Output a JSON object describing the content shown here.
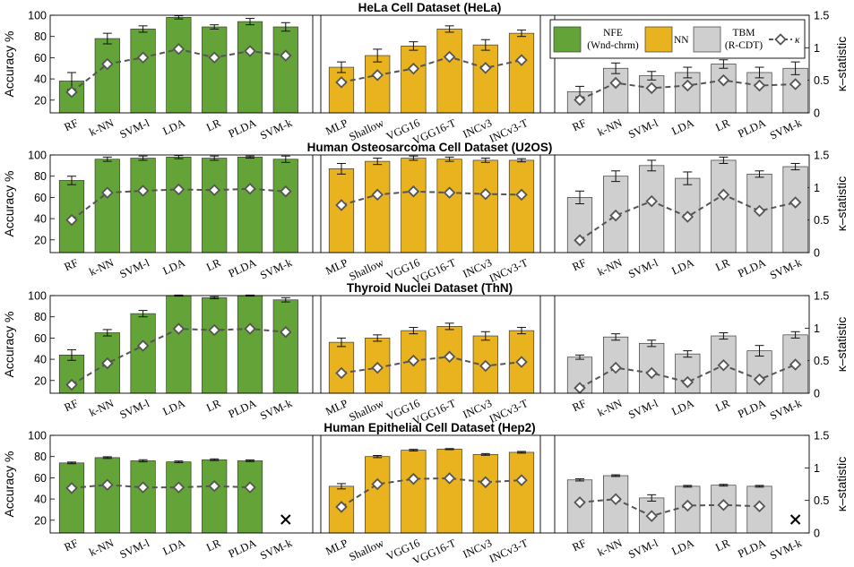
{
  "chart_data": {
    "type": "bar",
    "colors": {
      "NFE": "#64a337",
      "NN": "#e9b320",
      "TBM": "#cfcfcf",
      "kappa": "#555555"
    },
    "legend": {
      "location": "top-right",
      "entries": [
        {
          "group": "NFE",
          "label_lines": [
            "NFE",
            "(Wnd-chrm)"
          ]
        },
        {
          "group": "NN",
          "label_lines": [
            "NN"
          ]
        },
        {
          "group": "TBM",
          "label_lines": [
            "TBM",
            "(R-CDT)"
          ]
        },
        {
          "group": "kappa",
          "label_lines": [
            "κ"
          ]
        }
      ]
    },
    "groups": [
      {
        "name": "NFE",
        "categories": [
          "RF",
          "k-NN",
          "SVM-l",
          "LDA",
          "LR",
          "PLDA",
          "SVM-k"
        ]
      },
      {
        "name": "NN",
        "categories": [
          "MLP",
          "Shallow",
          "VGG16",
          "VGG16-T",
          "INCv3",
          "INCv3-T"
        ]
      },
      {
        "name": "TBM",
        "categories": [
          "RF",
          "k-NN",
          "SVM-l",
          "LDA",
          "LR",
          "PLDA",
          "SVM-k"
        ]
      }
    ],
    "left_axis": {
      "label": "Accuracy %",
      "ylim": [
        8,
        100
      ],
      "ticks": [
        20,
        40,
        60,
        80,
        100
      ]
    },
    "right_axis": {
      "label": "κ–statistic",
      "ylim": [
        0,
        1.5
      ],
      "ticks": [
        "0",
        "0.5",
        "1",
        "1.5"
      ]
    },
    "panels": [
      {
        "title": "HeLa Cell Dataset (HeLa)",
        "accuracy": [
          [
            38,
            78,
            87,
            98,
            89,
            94,
            89
          ],
          [
            51,
            62,
            71,
            87,
            72,
            83
          ],
          [
            28,
            50,
            43,
            46,
            54,
            46,
            50
          ]
        ],
        "accuracy_err": [
          [
            8,
            5,
            3,
            1.5,
            2,
            3,
            4
          ],
          [
            5,
            6,
            4,
            3,
            5,
            3
          ],
          [
            5,
            5,
            4,
            5,
            4,
            5,
            6
          ]
        ],
        "kappa": [
          [
            0.32,
            0.75,
            0.85,
            0.98,
            0.85,
            0.95,
            0.88
          ],
          [
            0.47,
            0.58,
            0.68,
            0.86,
            0.69,
            0.81
          ],
          [
            0.2,
            0.46,
            0.38,
            0.42,
            0.5,
            0.42,
            0.44
          ]
        ]
      },
      {
        "title": "Human Osteosarcoma Cell Dataset (U2OS)",
        "accuracy": [
          [
            76,
            96,
            97,
            98,
            97,
            98,
            96
          ],
          [
            87,
            94,
            97,
            96,
            95,
            95
          ],
          [
            60,
            80,
            90,
            78,
            95,
            82,
            89
          ]
        ],
        "accuracy_err": [
          [
            4,
            2,
            2,
            1.5,
            2,
            1,
            3
          ],
          [
            5,
            3,
            2,
            2,
            2,
            1.5
          ],
          [
            6,
            5,
            5,
            6,
            3,
            3,
            3
          ]
        ],
        "kappa": [
          [
            0.5,
            0.92,
            0.95,
            0.97,
            0.96,
            0.98,
            0.94
          ],
          [
            0.73,
            0.89,
            0.94,
            0.92,
            0.9,
            0.89
          ],
          [
            0.19,
            0.57,
            0.79,
            0.55,
            0.89,
            0.64,
            0.77
          ]
        ]
      },
      {
        "title": "Thyroid Nuclei Dataset (ThN)",
        "accuracy": [
          [
            44,
            65,
            83,
            100,
            98,
            100,
            96
          ],
          [
            56,
            60,
            67,
            71,
            62,
            67
          ],
          [
            42,
            61,
            55,
            45,
            62,
            48,
            63
          ]
        ],
        "accuracy_err": [
          [
            5,
            3,
            3,
            0.5,
            1,
            0.5,
            2
          ],
          [
            4,
            3,
            3,
            3,
            4,
            3
          ],
          [
            2,
            3,
            3,
            3,
            3,
            5,
            3
          ]
        ],
        "kappa": [
          [
            0.13,
            0.46,
            0.73,
            0.99,
            0.97,
            0.99,
            0.94
          ],
          [
            0.31,
            0.39,
            0.5,
            0.56,
            0.42,
            0.48
          ],
          [
            0.08,
            0.39,
            0.31,
            0.17,
            0.43,
            0.21,
            0.44
          ]
        ]
      },
      {
        "title": "Human Epithelial Cell Dataset (Hep2)",
        "accuracy": [
          [
            74,
            79,
            76,
            75,
            77,
            76,
            null
          ],
          [
            52,
            80,
            86,
            87,
            82,
            84
          ],
          [
            58,
            62,
            41,
            52,
            53,
            52,
            null
          ]
        ],
        "accuracy_err": [
          [
            0.8,
            0.8,
            1,
            0.8,
            0.8,
            0.8,
            0
          ],
          [
            2.5,
            1,
            0.8,
            0.5,
            0.8,
            0.8
          ],
          [
            1,
            0.8,
            3,
            0.8,
            0.8,
            0.8,
            0
          ]
        ],
        "kappa": [
          [
            0.69,
            0.74,
            0.7,
            0.7,
            0.72,
            0.7,
            null
          ],
          [
            0.4,
            0.75,
            0.83,
            0.84,
            0.78,
            0.81
          ],
          [
            0.47,
            0.52,
            0.26,
            0.42,
            0.43,
            0.41,
            null
          ]
        ]
      }
    ]
  }
}
